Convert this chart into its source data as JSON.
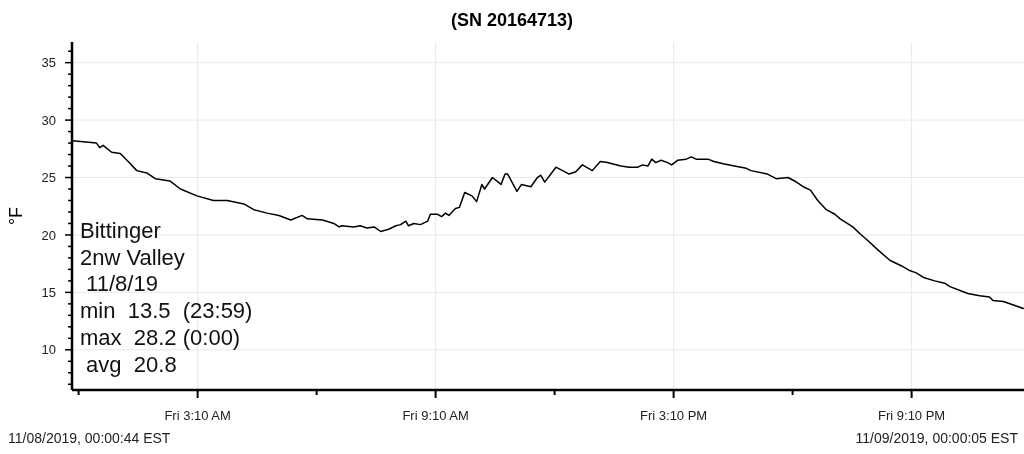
{
  "chart_data": {
    "type": "line",
    "title": "(SN 20164713)",
    "ylabel": "°F",
    "xlim": [
      "2019-11-08T00:00",
      "2019-11-09T00:00"
    ],
    "ylim": [
      6.5,
      36.8
    ],
    "xticks": [
      {
        "value": "2019-11-08T00:10",
        "label": null
      },
      {
        "value": "2019-11-08T03:10",
        "label": "Fri 3:10 AM"
      },
      {
        "value": "2019-11-08T06:10",
        "label": null
      },
      {
        "value": "2019-11-08T09:10",
        "label": "Fri 9:10 AM"
      },
      {
        "value": "2019-11-08T12:10",
        "label": null
      },
      {
        "value": "2019-11-08T15:10",
        "label": "Fri 3:10 PM"
      },
      {
        "value": "2019-11-08T18:10",
        "label": null
      },
      {
        "value": "2019-11-08T21:10",
        "label": "Fri 9:10 PM"
      }
    ],
    "yticks": [
      {
        "value": 7,
        "label": null
      },
      {
        "value": 8,
        "label": null
      },
      {
        "value": 9,
        "label": null
      },
      10,
      {
        "value": 11,
        "label": null
      },
      {
        "value": 12,
        "label": null
      },
      {
        "value": 13,
        "label": null
      },
      {
        "value": 14,
        "label": null
      },
      15,
      {
        "value": 16,
        "label": null
      },
      {
        "value": 17,
        "label": null
      },
      {
        "value": 18,
        "label": null
      },
      {
        "value": 19,
        "label": null
      },
      20,
      {
        "value": 21,
        "label": null
      },
      {
        "value": 22,
        "label": null
      },
      {
        "value": 23,
        "label": null
      },
      {
        "value": 24,
        "label": null
      },
      25,
      {
        "value": 26,
        "label": null
      },
      {
        "value": 27,
        "label": null
      },
      {
        "value": 28,
        "label": null
      },
      {
        "value": 29,
        "label": null
      },
      30,
      {
        "value": 31,
        "label": null
      },
      {
        "value": 32,
        "label": null
      },
      {
        "value": 33,
        "label": null
      },
      {
        "value": 34,
        "label": null
      },
      35,
      {
        "value": 36,
        "label": null
      }
    ],
    "grid": true,
    "line_style": "solid",
    "marker": "none",
    "annotations": [
      "Bittinger\n2nw Valley\n 11/8/19\nmin  13.5  (23:59)\nmax  28.2 (0:00)\n avg  20.8",
      "11/08/2019, 00:00:44 EST",
      "11/09/2019, 00:00:05 EST"
    ],
    "series": [
      {
        "color": "#000000",
        "x": [
          "2019-11-08T00:01",
          "2019-11-08T00:37",
          "2019-11-08T00:42",
          "2019-11-08T00:47",
          "2019-11-08T01:00",
          "2019-11-08T01:13",
          "2019-11-08T01:25",
          "2019-11-08T01:38",
          "2019-11-08T01:53",
          "2019-11-08T02:06",
          "2019-11-08T02:28",
          "2019-11-08T02:44",
          "2019-11-08T03:09",
          "2019-11-08T03:34",
          "2019-11-08T03:55",
          "2019-11-08T04:20",
          "2019-11-08T04:35",
          "2019-11-08T04:55",
          "2019-11-08T05:13",
          "2019-11-08T05:31",
          "2019-11-08T05:48",
          "2019-11-08T05:56",
          "2019-11-08T06:19",
          "2019-11-08T06:36",
          "2019-11-08T06:44",
          "2019-11-08T06:48",
          "2019-11-08T07:06",
          "2019-11-08T07:16",
          "2019-11-08T07:26",
          "2019-11-08T07:37",
          "2019-11-08T07:47",
          "2019-11-08T07:59",
          "2019-11-08T08:10",
          "2019-11-08T08:17",
          "2019-11-08T08:25",
          "2019-11-08T08:29",
          "2019-11-08T08:37",
          "2019-11-08T08:47",
          "2019-11-08T08:58",
          "2019-11-08T09:02",
          "2019-11-08T09:13",
          "2019-11-08T09:19",
          "2019-11-08T09:25",
          "2019-11-08T09:30",
          "2019-11-08T09:40",
          "2019-11-08T09:46",
          "2019-11-08T09:54",
          "2019-11-08T10:05",
          "2019-11-08T10:12",
          "2019-11-08T10:20",
          "2019-11-08T10:24",
          "2019-11-08T10:36",
          "2019-11-08T10:49",
          "2019-11-08T10:55",
          "2019-11-08T10:59",
          "2019-11-08T11:13",
          "2019-11-08T11:20",
          "2019-11-08T11:34",
          "2019-11-08T11:44",
          "2019-11-08T11:49",
          "2019-11-08T11:55",
          "2019-11-08T12:12",
          "2019-11-08T12:22",
          "2019-11-08T12:32",
          "2019-11-08T12:42",
          "2019-11-08T12:52",
          "2019-11-08T13:07",
          "2019-11-08T13:19",
          "2019-11-08T13:30",
          "2019-11-08T13:50",
          "2019-11-08T14:03",
          "2019-11-08T14:16",
          "2019-11-08T14:23",
          "2019-11-08T14:31",
          "2019-11-08T14:37",
          "2019-11-08T14:43",
          "2019-11-08T14:51",
          "2019-11-08T15:01",
          "2019-11-08T15:07",
          "2019-11-08T15:16",
          "2019-11-08T15:29",
          "2019-11-08T15:37",
          "2019-11-08T15:44",
          "2019-11-08T16:02",
          "2019-11-08T16:11",
          "2019-11-08T16:25",
          "2019-11-08T16:42",
          "2019-11-08T17:00",
          "2019-11-08T17:07",
          "2019-11-08T17:32",
          "2019-11-08T17:45",
          "2019-11-08T18:03",
          "2019-11-08T18:13",
          "2019-11-08T18:26",
          "2019-11-08T18:37",
          "2019-11-08T18:48",
          "2019-11-08T19:01",
          "2019-11-08T19:14",
          "2019-11-08T19:22",
          "2019-11-08T19:41",
          "2019-11-08T19:52",
          "2019-11-08T20:04",
          "2019-11-08T20:19",
          "2019-11-08T20:37",
          "2019-11-08T20:55",
          "2019-11-08T21:07",
          "2019-11-08T21:17",
          "2019-11-08T21:28",
          "2019-11-08T21:45",
          "2019-11-08T22:00",
          "2019-11-08T22:08",
          "2019-11-08T22:35",
          "2019-11-08T22:53",
          "2019-11-08T23:08",
          "2019-11-08T23:13",
          "2019-11-08T23:29",
          "2019-11-08T23:44",
          "2019-11-08T23:59"
        ],
        "values": [
          28.2,
          28.0,
          27.6,
          27.8,
          27.2,
          27.1,
          26.4,
          25.6,
          25.4,
          24.9,
          24.7,
          24.0,
          23.4,
          23.0,
          23.0,
          22.7,
          22.2,
          21.9,
          21.7,
          21.3,
          21.7,
          21.4,
          21.3,
          21.0,
          20.7,
          20.8,
          20.7,
          20.8,
          20.6,
          20.7,
          20.3,
          20.5,
          20.8,
          20.9,
          21.2,
          20.8,
          21.0,
          20.9,
          21.2,
          21.8,
          21.8,
          21.6,
          21.9,
          21.7,
          22.3,
          22.4,
          23.7,
          23.4,
          22.9,
          24.4,
          24.0,
          25.0,
          24.4,
          25.3,
          25.3,
          23.8,
          24.4,
          24.2,
          25.0,
          25.2,
          24.6,
          25.9,
          25.6,
          25.3,
          25.5,
          26.1,
          25.6,
          26.4,
          26.3,
          26.0,
          25.9,
          25.9,
          26.1,
          26.0,
          26.6,
          26.3,
          26.5,
          26.3,
          26.1,
          26.5,
          26.6,
          26.8,
          26.6,
          26.6,
          26.4,
          26.2,
          26.0,
          25.8,
          25.6,
          25.3,
          24.9,
          25.0,
          24.7,
          24.2,
          23.9,
          23.0,
          22.2,
          21.8,
          21.4,
          20.7,
          20.1,
          19.5,
          18.7,
          17.8,
          17.3,
          16.9,
          16.7,
          16.3,
          16.0,
          15.8,
          15.5,
          14.9,
          14.7,
          14.6,
          14.3,
          14.2,
          13.9,
          13.6
        ]
      }
    ]
  }
}
